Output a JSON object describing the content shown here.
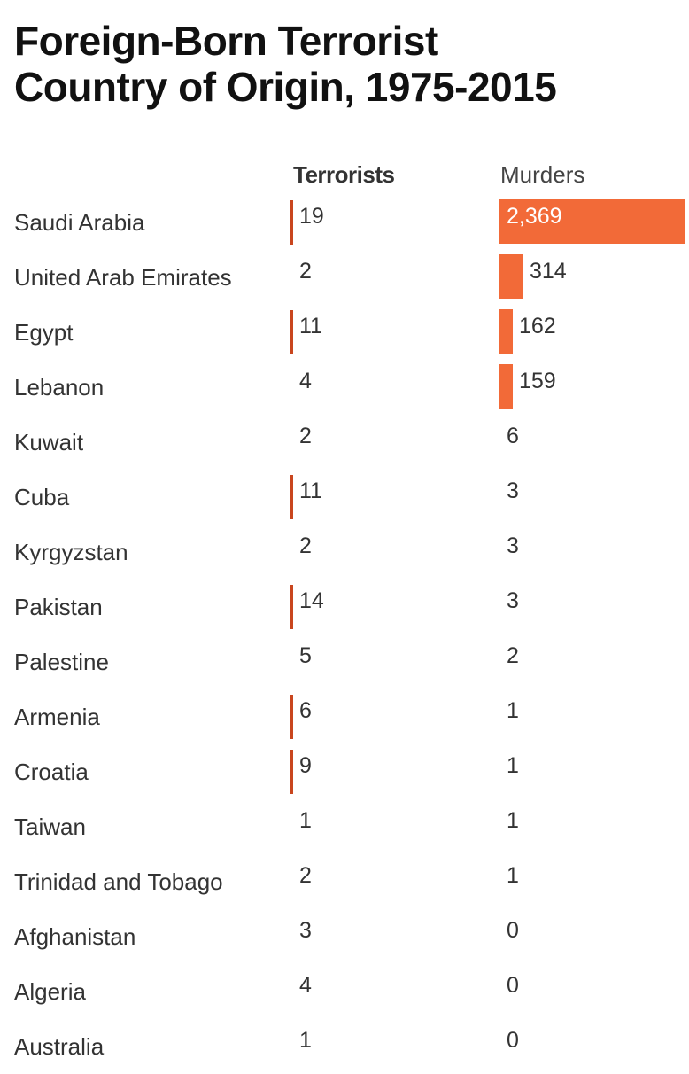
{
  "title_line1": "Foreign-Born Terrorist",
  "title_line2": "Country of Origin, 1975-2015",
  "colors": {
    "terrorists_bar": "#c9461e",
    "murders_bar": "#f26a38",
    "inside_label": "#ffffff"
  },
  "chart_data": {
    "type": "table",
    "title": "Foreign-Born Terrorist Country of Origin, 1975-2015",
    "columns": [
      "Terrorists",
      "Murders"
    ],
    "categories": [
      "Saudi Arabia",
      "United Arab Emirates",
      "Egypt",
      "Lebanon",
      "Kuwait",
      "Cuba",
      "Kyrgyzstan",
      "Pakistan",
      "Palestine",
      "Armenia",
      "Croatia",
      "Taiwan",
      "Trinidad and Tobago",
      "Afghanistan",
      "Algeria",
      "Australia"
    ],
    "series": [
      {
        "name": "Terrorists",
        "values": [
          19,
          2,
          11,
          4,
          2,
          11,
          2,
          14,
          5,
          6,
          9,
          1,
          2,
          3,
          4,
          1
        ],
        "labels": [
          "19",
          "2",
          "11",
          "4",
          "2",
          "11",
          "2",
          "14",
          "5",
          "6",
          "9",
          "1",
          "2",
          "3",
          "4",
          "1"
        ]
      },
      {
        "name": "Murders",
        "values": [
          2369,
          314,
          162,
          159,
          6,
          3,
          3,
          3,
          2,
          1,
          1,
          1,
          1,
          0,
          0,
          0
        ],
        "labels": [
          "2,369",
          "314",
          "162",
          "159",
          "6",
          "3",
          "3",
          "3",
          "2",
          "1",
          "1",
          "1",
          "1",
          "0",
          "0",
          "0"
        ]
      }
    ],
    "terrorist_bar_threshold": 6,
    "murder_bar_threshold": 100
  }
}
